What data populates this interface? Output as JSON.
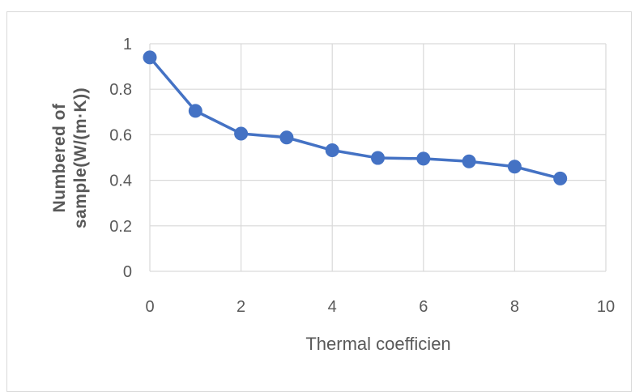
{
  "chart_data": {
    "type": "line",
    "title": "",
    "xlabel": "Thermal coefficien",
    "ylabel_lines": [
      "Numbered of",
      "sample(W/(m·K))"
    ],
    "xlim": [
      0,
      10
    ],
    "ylim": [
      0,
      1
    ],
    "x_ticks": [
      "0",
      "2",
      "4",
      "6",
      "8",
      "10"
    ],
    "y_ticks": [
      "0",
      "0.2",
      "0.4",
      "0.6",
      "0.8",
      "1"
    ],
    "grid": true,
    "series": [
      {
        "color": "#4472c4",
        "x": [
          0,
          1,
          2,
          3,
          4,
          5,
          6,
          7,
          8,
          9
        ],
        "y": [
          0.94,
          0.705,
          0.605,
          0.588,
          0.532,
          0.498,
          0.495,
          0.483,
          0.46,
          0.408
        ]
      }
    ]
  }
}
